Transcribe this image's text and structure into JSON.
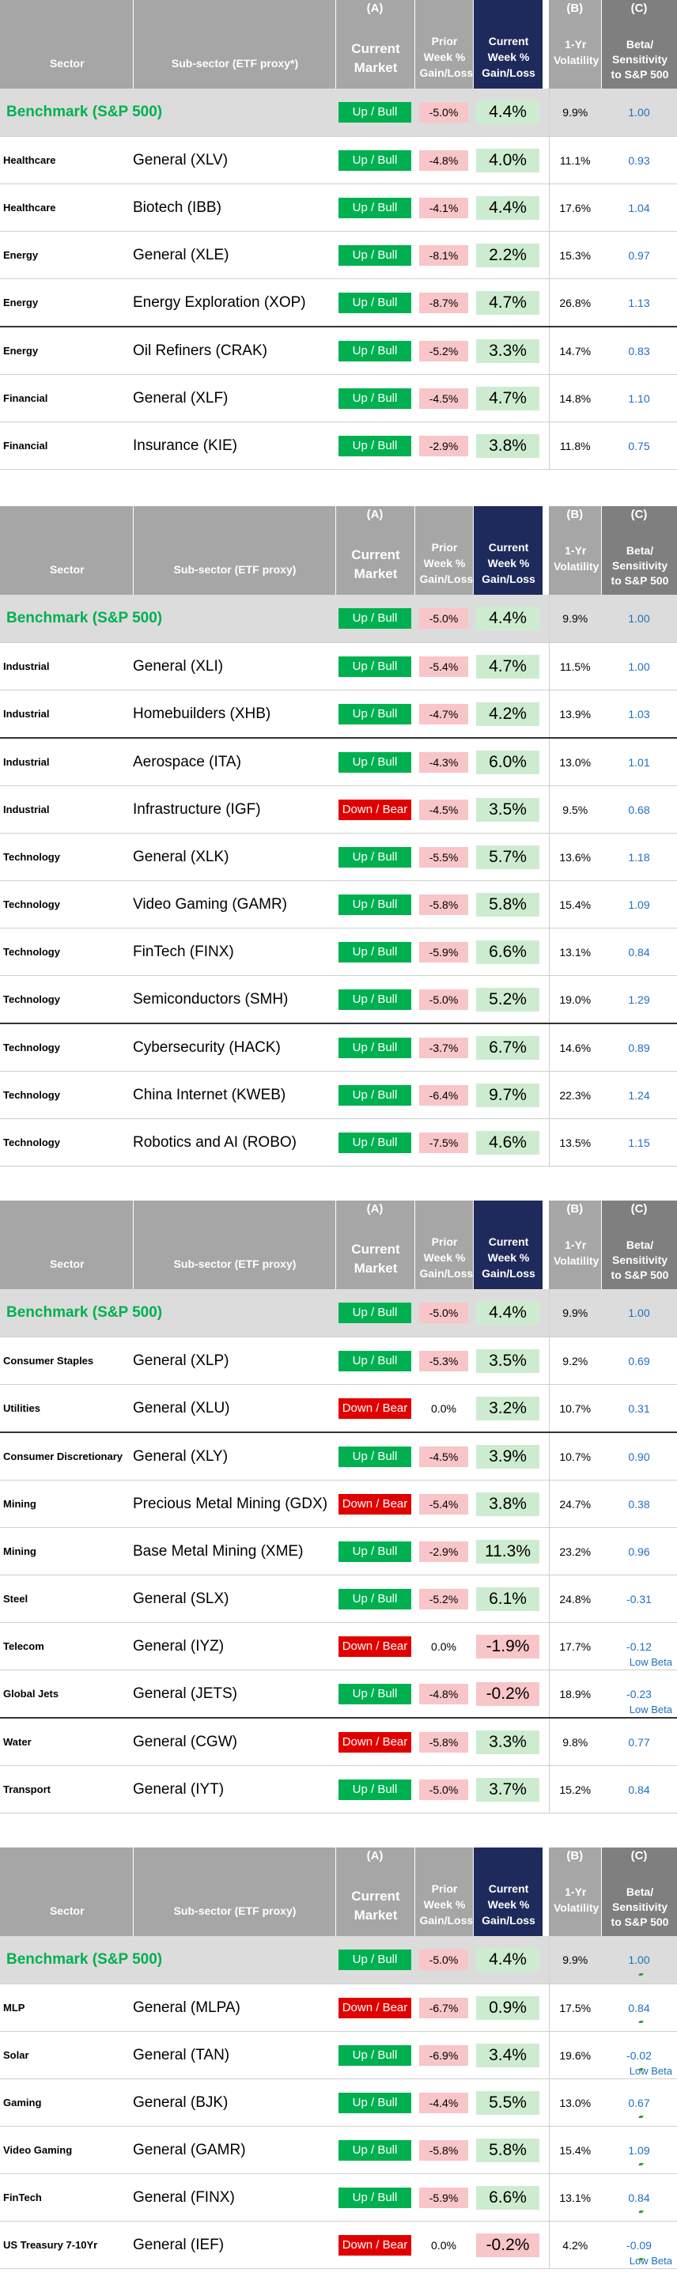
{
  "header": {
    "letter_a": "(A)",
    "letter_b": "(B)",
    "letter_c": "(C)",
    "sector": "Sector",
    "sub_sector_1": "Sub-sector (ETF proxy*)",
    "sub_sector_2": "Sub-sector (ETF proxy)",
    "current_market": "Current Market",
    "prior_week": "Prior Week % Gain/Loss",
    "current_week": "Current Week % Gain/Loss",
    "volatility": "1-Yr Volatility",
    "beta": "Beta/ Sensitivity to S&P 500"
  },
  "benchmark": {
    "label": "Benchmark (S&P 500)",
    "market": "Up / Bull",
    "prior": "-5.0%",
    "current": "4.4%",
    "volatility": "9.9%",
    "beta": "1.00"
  },
  "tables": [
    {
      "rows": [
        {
          "sector": "Healthcare",
          "sub": "General (XLV)",
          "market": "Up / Bull",
          "prior": "-4.8%",
          "current": "4.0%",
          "vol": "11.1%",
          "beta": "0.93",
          "note": ""
        },
        {
          "sector": "Healthcare",
          "sub": "Biotech (IBB)",
          "market": "Up / Bull",
          "prior": "-4.1%",
          "current": "4.4%",
          "vol": "17.6%",
          "beta": "1.04",
          "note": ""
        },
        {
          "sector": "Energy",
          "sub": "General (XLE)",
          "market": "Up / Bull",
          "prior": "-8.1%",
          "current": "2.2%",
          "vol": "15.3%",
          "beta": "0.97",
          "note": ""
        },
        {
          "sector": "Energy",
          "sub": "Energy Exploration (XOP)",
          "market": "Up / Bull",
          "prior": "-8.7%",
          "current": "4.7%",
          "vol": "26.8%",
          "beta": "1.13",
          "note": ""
        },
        {
          "sector": "Energy",
          "sub": "Oil Refiners (CRAK)",
          "market": "Up / Bull",
          "prior": "-5.2%",
          "current": "3.3%",
          "vol": "14.7%",
          "beta": "0.83",
          "note": ""
        },
        {
          "sector": "Financial",
          "sub": "General (XLF)",
          "market": "Up / Bull",
          "prior": "-4.5%",
          "current": "4.7%",
          "vol": "14.8%",
          "beta": "1.10",
          "note": ""
        },
        {
          "sector": "Financial",
          "sub": "Insurance (KIE)",
          "market": "Up / Bull",
          "prior": "-2.9%",
          "current": "3.8%",
          "vol": "11.8%",
          "beta": "0.75",
          "note": ""
        }
      ]
    },
    {
      "rows": [
        {
          "sector": "Industrial",
          "sub": "General (XLI)",
          "market": "Up / Bull",
          "prior": "-5.4%",
          "current": "4.7%",
          "vol": "11.5%",
          "beta": "1.00",
          "note": ""
        },
        {
          "sector": "Industrial",
          "sub": "Homebuilders (XHB)",
          "market": "Up / Bull",
          "prior": "-4.7%",
          "current": "4.2%",
          "vol": "13.9%",
          "beta": "1.03",
          "note": ""
        },
        {
          "sector": "Industrial",
          "sub": "Aerospace (ITA)",
          "market": "Up / Bull",
          "prior": "-4.3%",
          "current": "6.0%",
          "vol": "13.0%",
          "beta": "1.01",
          "note": ""
        },
        {
          "sector": "Industrial",
          "sub": "Infrastructure (IGF)",
          "market": "Down / Bear",
          "prior": "-4.5%",
          "current": "3.5%",
          "vol": "9.5%",
          "beta": "0.68",
          "note": ""
        },
        {
          "sector": "Technology",
          "sub": "General (XLK)",
          "market": "Up / Bull",
          "prior": "-5.5%",
          "current": "5.7%",
          "vol": "13.6%",
          "beta": "1.18",
          "note": ""
        },
        {
          "sector": "Technology",
          "sub": "Video Gaming (GAMR)",
          "market": "Up / Bull",
          "prior": "-5.8%",
          "current": "5.8%",
          "vol": "15.4%",
          "beta": "1.09",
          "note": ""
        },
        {
          "sector": "Technology",
          "sub": "FinTech (FINX)",
          "market": "Up / Bull",
          "prior": "-5.9%",
          "current": "6.6%",
          "vol": "13.1%",
          "beta": "0.84",
          "note": ""
        },
        {
          "sector": "Technology",
          "sub": "Semiconductors (SMH)",
          "market": "Up / Bull",
          "prior": "-5.0%",
          "current": "5.2%",
          "vol": "19.0%",
          "beta": "1.29",
          "note": ""
        },
        {
          "sector": "Technology",
          "sub": "Cybersecurity (HACK)",
          "market": "Up / Bull",
          "prior": "-3.7%",
          "current": "6.7%",
          "vol": "14.6%",
          "beta": "0.89",
          "note": ""
        },
        {
          "sector": "Technology",
          "sub": "China Internet (KWEB)",
          "market": "Up / Bull",
          "prior": "-6.4%",
          "current": "9.7%",
          "vol": "22.3%",
          "beta": "1.24",
          "note": ""
        },
        {
          "sector": "Technology",
          "sub": "Robotics and AI (ROBO)",
          "market": "Up / Bull",
          "prior": "-7.5%",
          "current": "4.6%",
          "vol": "13.5%",
          "beta": "1.15",
          "note": ""
        }
      ]
    },
    {
      "rows": [
        {
          "sector": "Consumer Staples",
          "sub": "General (XLP)",
          "market": "Up / Bull",
          "prior": "-5.3%",
          "current": "3.5%",
          "vol": "9.2%",
          "beta": "0.69",
          "note": ""
        },
        {
          "sector": "Utilities",
          "sub": "General  (XLU)",
          "market": "Down / Bear",
          "prior": "0.0%",
          "current": "3.2%",
          "vol": "10.7%",
          "beta": "0.31",
          "note": ""
        },
        {
          "sector": "Consumer Discretionary",
          "sub": "General  (XLY)",
          "market": "Up / Bull",
          "prior": "-4.5%",
          "current": "3.9%",
          "vol": "10.7%",
          "beta": "0.90",
          "note": ""
        },
        {
          "sector": "Mining",
          "sub": "Precious Metal Mining (GDX)",
          "market": "Down / Bear",
          "prior": "-5.4%",
          "current": "3.8%",
          "vol": "24.7%",
          "beta": "0.38",
          "note": ""
        },
        {
          "sector": "Mining",
          "sub": "Base Metal Mining (XME)",
          "market": "Up / Bull",
          "prior": "-2.9%",
          "current": "11.3%",
          "vol": "23.2%",
          "beta": "0.96",
          "note": ""
        },
        {
          "sector": "Steel",
          "sub": "General (SLX)",
          "market": "Up / Bull",
          "prior": "-5.2%",
          "current": "6.1%",
          "vol": "24.8%",
          "beta": "-0.31",
          "note": ""
        },
        {
          "sector": "Telecom",
          "sub": "General (IYZ)",
          "market": "Down / Bear",
          "prior": "0.0%",
          "current": "-1.9%",
          "vol": "17.7%",
          "beta": "-0.12",
          "note": "Low Beta"
        },
        {
          "sector": "Global Jets",
          "sub": "General (JETS)",
          "market": "Up / Bull",
          "prior": "-4.8%",
          "current": "-0.2%",
          "vol": "18.9%",
          "beta": "-0.23",
          "note": "Low Beta"
        },
        {
          "sector": "Water",
          "sub": "General (CGW)",
          "market": "Down / Bear",
          "prior": "-5.8%",
          "current": "3.3%",
          "vol": "9.8%",
          "beta": "0.77",
          "note": ""
        },
        {
          "sector": "Transport",
          "sub": "General (IYT)",
          "market": "Up / Bull",
          "prior": "-5.0%",
          "current": "3.7%",
          "vol": "15.2%",
          "beta": "0.84",
          "note": ""
        }
      ]
    },
    {
      "rows": [
        {
          "sector": "MLP",
          "sub": "General (MLPA)",
          "market": "Down / Bear",
          "prior": "-6.7%",
          "current": "0.9%",
          "vol": "17.5%",
          "beta": "0.84",
          "note": ""
        },
        {
          "sector": "Solar",
          "sub": "General (TAN)",
          "market": "Up / Bull",
          "prior": "-6.9%",
          "current": "3.4%",
          "vol": "19.6%",
          "beta": "-0.02",
          "note": "Low Beta"
        },
        {
          "sector": "Gaming",
          "sub": "General (BJK)",
          "market": "Up / Bull",
          "prior": "-4.4%",
          "current": "5.5%",
          "vol": "13.0%",
          "beta": "0.67",
          "note": ""
        },
        {
          "sector": "Video Gaming",
          "sub": "General (GAMR)",
          "market": "Up / Bull",
          "prior": "-5.8%",
          "current": "5.8%",
          "vol": "15.4%",
          "beta": "1.09",
          "note": ""
        },
        {
          "sector": "FinTech",
          "sub": "General (FINX)",
          "market": "Up / Bull",
          "prior": "-5.9%",
          "current": "6.6%",
          "vol": "13.1%",
          "beta": "0.84",
          "note": ""
        },
        {
          "sector": "US Treasury 7-10Yr",
          "sub": "General (IEF)",
          "market": "Down / Bear",
          "prior": "0.0%",
          "current": "-0.2%",
          "vol": "4.2%",
          "beta": "-0.09",
          "note": "Low Beta"
        }
      ]
    }
  ]
}
